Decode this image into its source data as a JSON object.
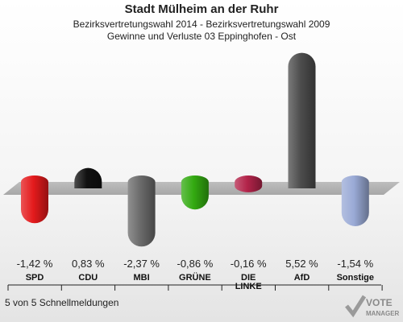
{
  "header": {
    "title": "Stadt Mülheim an der Ruhr",
    "subtitle1": "Bezirksvertretungswahl 2014 - Bezirksvertretungswahl 2009",
    "subtitle2": "Gewinne und Verluste 03 Eppinghofen - Ost"
  },
  "chart_data": {
    "type": "bar",
    "categories": [
      [
        "SPD"
      ],
      [
        "CDU"
      ],
      [
        "MBI"
      ],
      [
        "GRÜNE"
      ],
      [
        "DIE",
        "LINKE"
      ],
      [
        "AfD"
      ],
      [
        "Sonstige"
      ]
    ],
    "values": [
      -1.42,
      0.83,
      -2.37,
      -0.86,
      -0.16,
      5.52,
      -1.54
    ],
    "value_labels": [
      "-1,42 %",
      "0,83 %",
      "-2,37 %",
      "-0,86 %",
      "-0,16 %",
      "5,52 %",
      "-1,54 %"
    ],
    "colors": [
      "#e41a1c",
      "#111111",
      "#6b6b6b",
      "#33aa11",
      "#b3244a",
      "#4d4d4d",
      "#9aaad6"
    ],
    "unit": "%"
  },
  "footer": {
    "text": "5 von 5 Schnellmeldungen"
  },
  "logo": {
    "text": "VOTE",
    "subtext": "MANAGER"
  }
}
